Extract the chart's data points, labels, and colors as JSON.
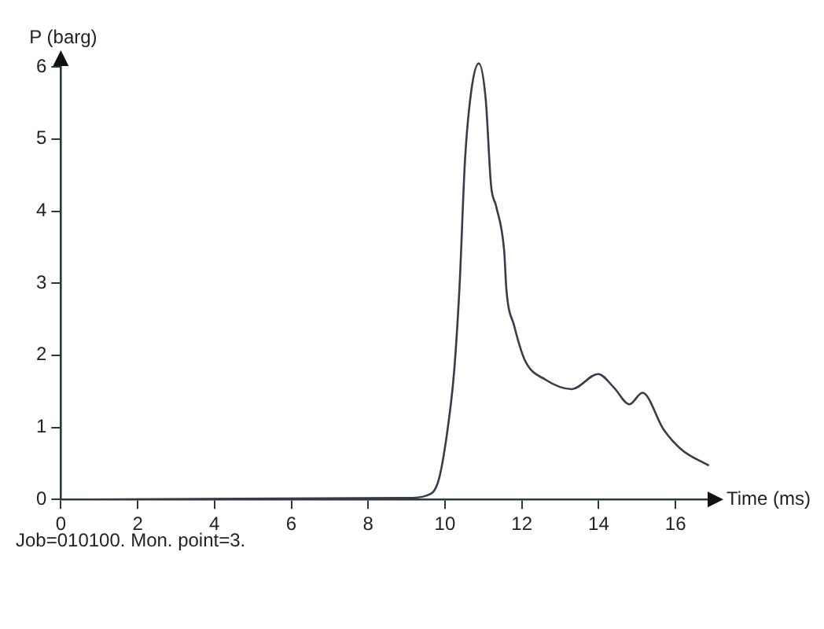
{
  "chart_data": {
    "type": "line",
    "xlabel": "Time (ms)",
    "ylabel": "P (barg)",
    "x": [
      0.73,
      9.0,
      9.5,
      9.84,
      10.1,
      10.24,
      10.38,
      10.52,
      10.69,
      10.88,
      11.06,
      11.2,
      11.33,
      11.54,
      11.6,
      11.8,
      12.08,
      12.62,
      13.3,
      13.99,
      14.4,
      14.8,
      15.14,
      15.69,
      16.16,
      16.87
    ],
    "series": [
      {
        "color": "#3a3a4a",
        "values": [
          0,
          0.02,
          0.05,
          0.28,
          1.1,
          1.79,
          2.97,
          4.7,
          5.69,
          6.05,
          5.55,
          4.35,
          4.07,
          3.45,
          2.9,
          2.41,
          1.93,
          1.66,
          1.53,
          1.74,
          1.55,
          1.32,
          1.48,
          0.97,
          0.69,
          0.47
        ]
      }
    ],
    "xlim": [
      0,
      17
    ],
    "ylim": [
      0,
      6.1
    ],
    "xticks": [
      0,
      2,
      4,
      6,
      8,
      10,
      12,
      14,
      16
    ],
    "yticks": [
      0,
      1,
      2,
      3,
      4,
      5,
      6
    ],
    "grid": false,
    "legend": false,
    "marker": "none",
    "line_style": "solid",
    "annotations": [
      "Job=010100. Mon. point=3."
    ]
  }
}
